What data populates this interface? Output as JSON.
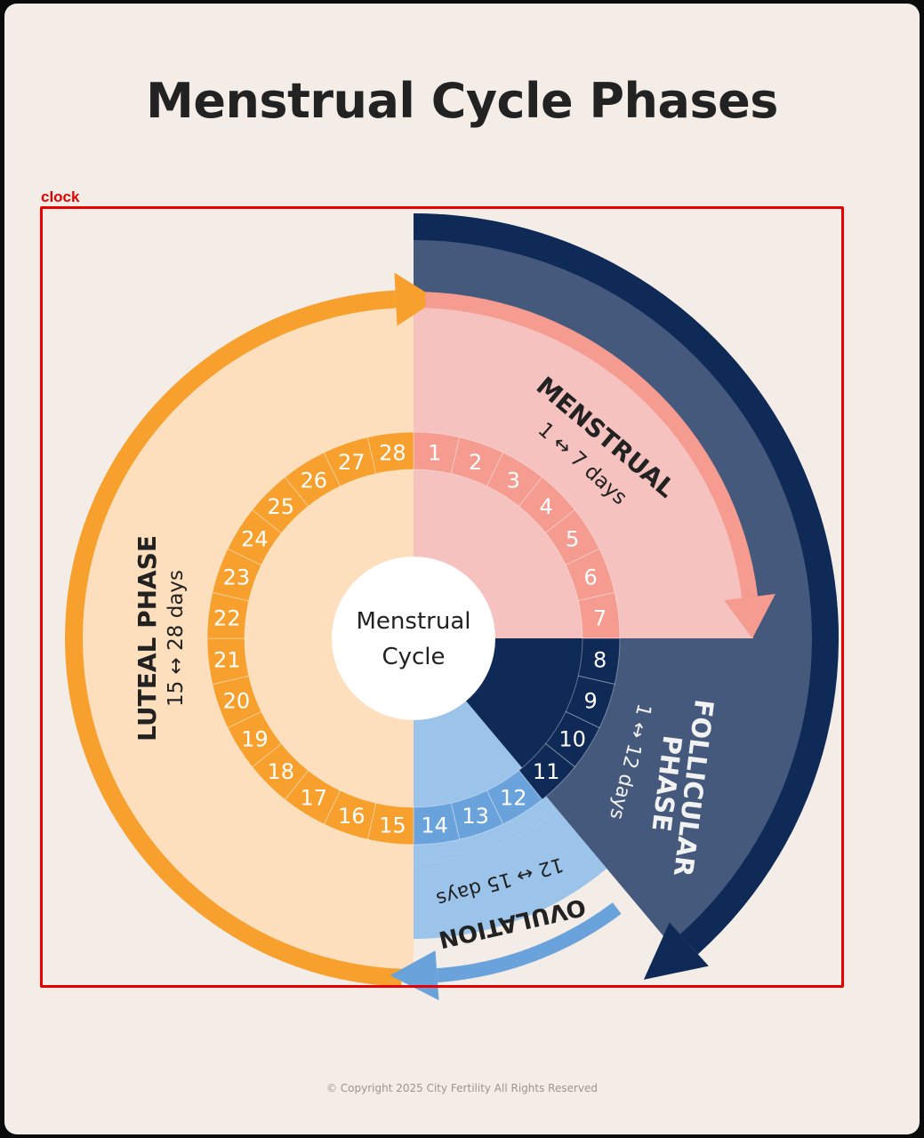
{
  "title": "Menstrual Cycle Phases",
  "annotation": {
    "label": "clock"
  },
  "center": {
    "line1": "Menstrual",
    "line2": "Cycle"
  },
  "days": [
    "1",
    "2",
    "3",
    "4",
    "5",
    "6",
    "7",
    "8",
    "9",
    "10",
    "11",
    "12",
    "13",
    "14",
    "15",
    "16",
    "17",
    "18",
    "19",
    "20",
    "21",
    "22",
    "23",
    "24",
    "25",
    "26",
    "27",
    "28"
  ],
  "phases": {
    "menstrual": {
      "name": "MENSTRUAL",
      "range": "1 ↔ 7 days",
      "color": "#f59b8f",
      "light": "#f5c2bf"
    },
    "follicular": {
      "line1": "FOLLICULAR",
      "line2": "PHASE",
      "range": "1 ↔ 12 days",
      "color": "#45597c",
      "dark": "#0f2a57"
    },
    "ovulation": {
      "name": "OVULATION",
      "range": "12 ↔ 15 days",
      "color": "#6aa3dc",
      "light": "#9cc4ea"
    },
    "luteal": {
      "name": "LUTEAL PHASE",
      "range": "15 ↔ 28 days",
      "color": "#f8a02e",
      "light": "#fddfbd"
    }
  },
  "footer": "© Copyright 2025 City Fertility All Rights Reserved"
}
